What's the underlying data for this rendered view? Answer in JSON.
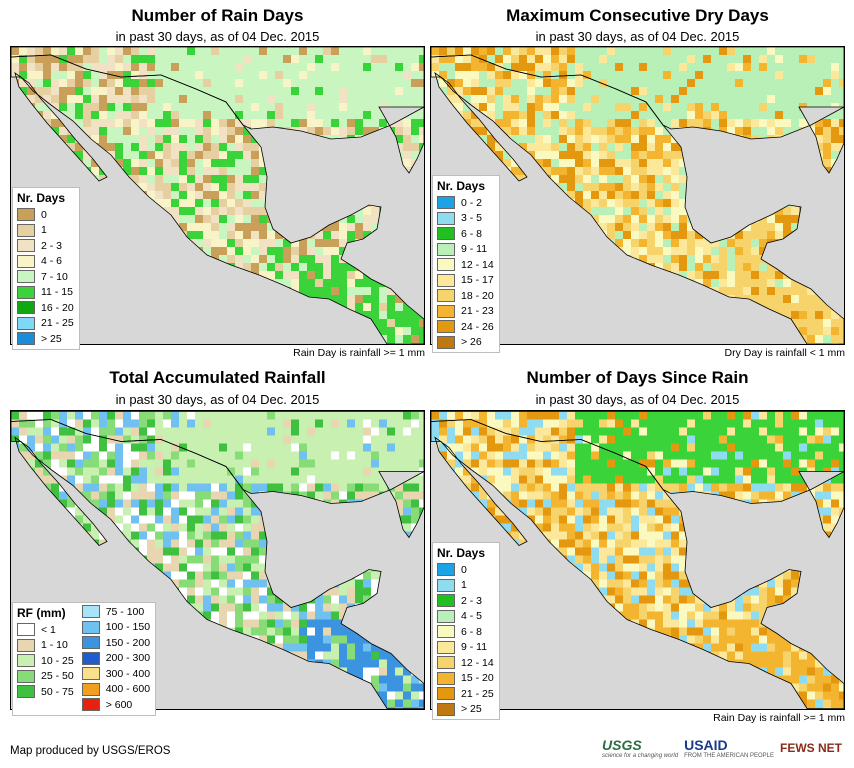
{
  "panels": [
    {
      "title": "Number of Rain Days",
      "subtitle": "in past 30 days, as of 04 Dec. 2015",
      "legend_title": "Nr. Days",
      "legend": [
        {
          "label": "0",
          "color": "#c8a05a"
        },
        {
          "label": "1",
          "color": "#e6cfa0"
        },
        {
          "label": "2 - 3",
          "color": "#f2e2c4"
        },
        {
          "label": "4 - 6",
          "color": "#f8f4c8"
        },
        {
          "label": "7 - 10",
          "color": "#c8f5c0"
        },
        {
          "label": "11 - 15",
          "color": "#3ad43a"
        },
        {
          "label": "16 - 20",
          "color": "#10a810"
        },
        {
          "label": "21 - 25",
          "color": "#7fd8f5"
        },
        {
          "label": "> 25",
          "color": "#1a8cd8"
        }
      ],
      "note": "Rain Day is rainfall >= 1 mm"
    },
    {
      "title": "Maximum Consecutive Dry Days",
      "subtitle": "in past 30 days, as of 04 Dec. 2015",
      "legend_title": "Nr. Days",
      "legend": [
        {
          "label": "0 - 2",
          "color": "#1aa4e6"
        },
        {
          "label": "3 - 5",
          "color": "#8fdcf0"
        },
        {
          "label": "6 - 8",
          "color": "#20c020"
        },
        {
          "label": "9 - 11",
          "color": "#b8f0b8"
        },
        {
          "label": "12 - 14",
          "color": "#fafac0"
        },
        {
          "label": "15 - 17",
          "color": "#fbe89a"
        },
        {
          "label": "18 - 20",
          "color": "#f7d36b"
        },
        {
          "label": "21 - 23",
          "color": "#f3b530"
        },
        {
          "label": "24 - 26",
          "color": "#e3980f"
        },
        {
          "label": "> 26",
          "color": "#c07810"
        }
      ],
      "note": "Dry Day is rainfall < 1 mm"
    },
    {
      "title": "Total Accumulated Rainfall",
      "subtitle": "in past 30 days, as of 04 Dec. 2015",
      "legend_title": "RF (mm)",
      "legend": [
        {
          "label": "< 1",
          "color": "#ffffff"
        },
        {
          "label": "1 - 10",
          "color": "#e8d6b0"
        },
        {
          "label": "10 - 25",
          "color": "#c8f0b0"
        },
        {
          "label": "25 - 50",
          "color": "#88dc78"
        },
        {
          "label": "50 - 75",
          "color": "#40c040"
        },
        {
          "label": "75 - 100",
          "color": "#a8e4f8"
        },
        {
          "label": "100 - 150",
          "color": "#70c0f0"
        },
        {
          "label": "150 - 200",
          "color": "#3c94e0"
        },
        {
          "label": "200 - 300",
          "color": "#1e5cd0"
        },
        {
          "label": "300 - 400",
          "color": "#f8e08c"
        },
        {
          "label": "400 - 600",
          "color": "#f0a020"
        },
        {
          "label": "> 600",
          "color": "#e82010"
        }
      ],
      "note": ""
    },
    {
      "title": "Number of Days Since Rain",
      "subtitle": "in past 30 days, as of 04 Dec. 2015",
      "legend_title": "Nr. Days",
      "legend": [
        {
          "label": "0",
          "color": "#1aa4e6"
        },
        {
          "label": "1",
          "color": "#8fdcf0"
        },
        {
          "label": "2 - 3",
          "color": "#20c020"
        },
        {
          "label": "4 - 5",
          "color": "#b8f0b8"
        },
        {
          "label": "6 - 8",
          "color": "#fafac0"
        },
        {
          "label": "9 - 11",
          "color": "#fbe89a"
        },
        {
          "label": "12 - 14",
          "color": "#f7d36b"
        },
        {
          "label": "15 - 20",
          "color": "#f3b530"
        },
        {
          "label": "21 - 25",
          "color": "#e3980f"
        },
        {
          "label": "> 25",
          "color": "#c07810"
        }
      ],
      "note": "Rain Day is rainfall >= 1 mm"
    }
  ],
  "footer": {
    "credit": "Map produced by USGS/EROS",
    "logos": [
      {
        "name": "USGS",
        "tagline": "science for a changing world"
      },
      {
        "name": "USAID",
        "tagline": "FROM THE AMERICAN PEOPLE"
      },
      {
        "name": "FEWS NET",
        "tagline": ""
      }
    ]
  },
  "colors": {
    "ocean": "#d7d7d7",
    "border": "#000000"
  }
}
